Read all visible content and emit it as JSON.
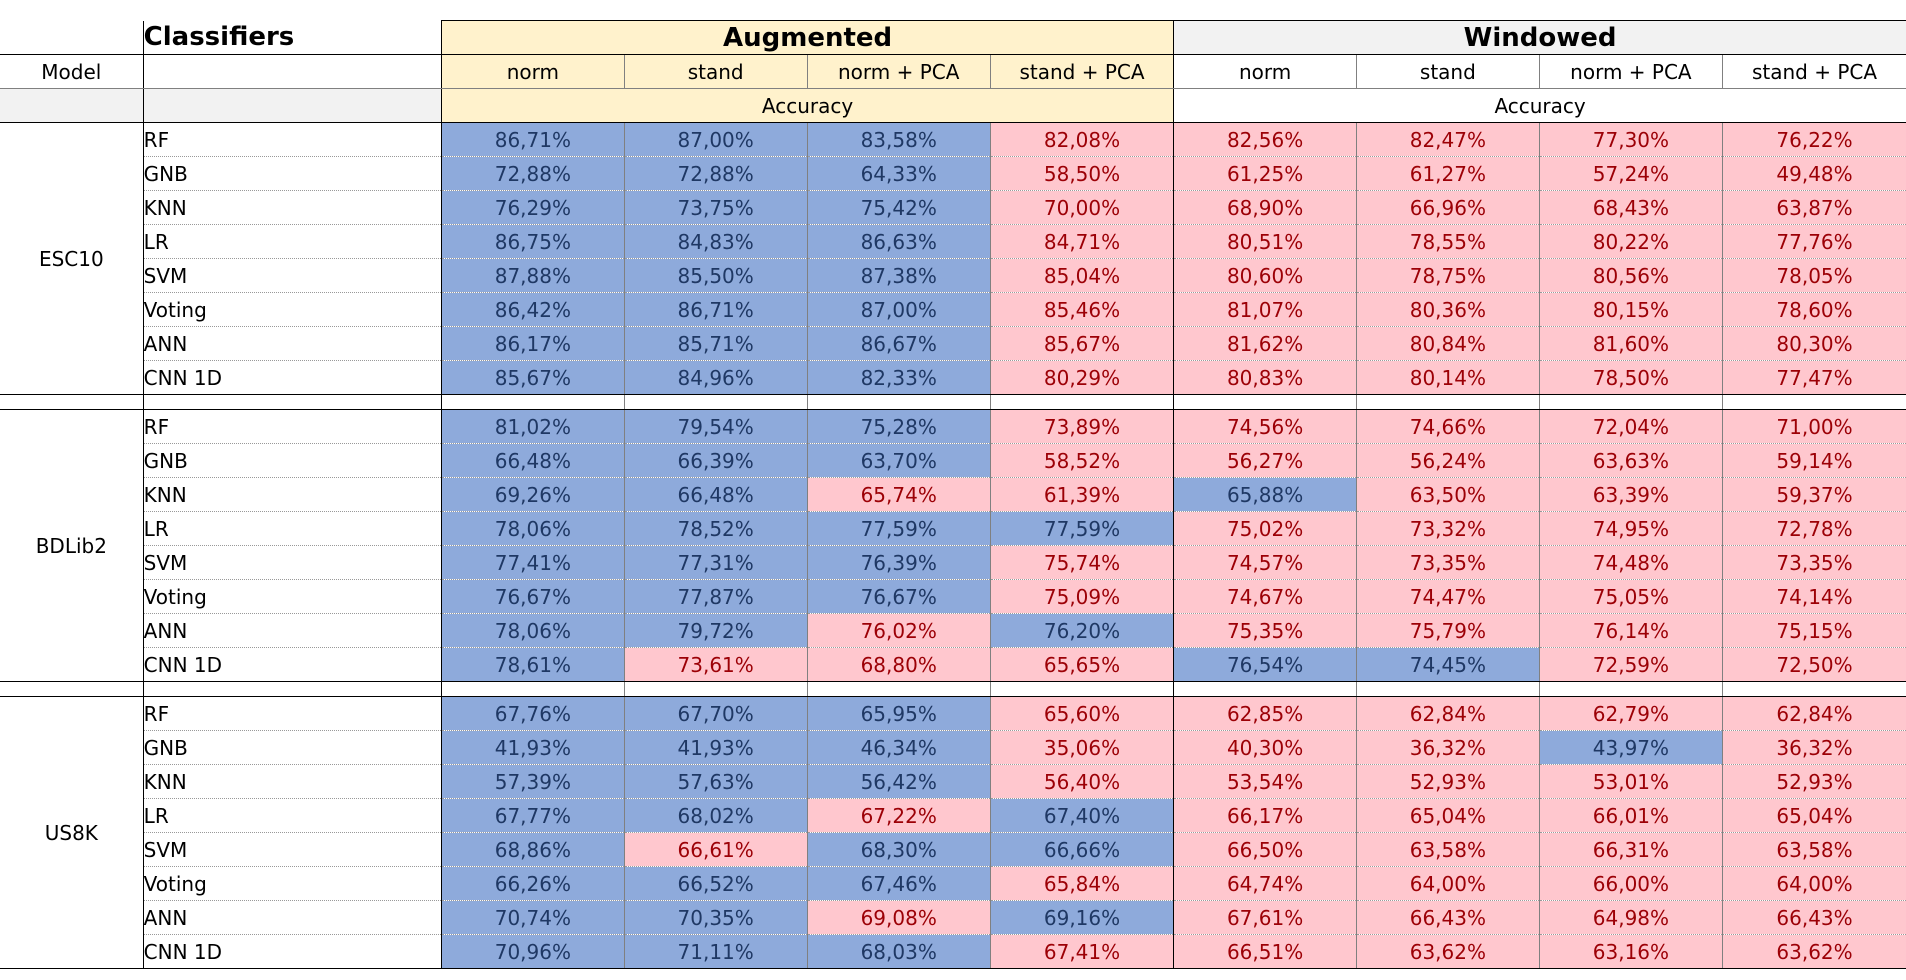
{
  "header": {
    "classifiers_title": "Classifiers",
    "model_label": "Model",
    "groups": [
      "Augmented",
      "Windowed"
    ],
    "columns": [
      "norm",
      "stand",
      "norm + PCA",
      "stand + PCA"
    ],
    "metric_label": "Accuracy"
  },
  "colors": {
    "blue": "#8eaadb",
    "pink": "#ffc7ce",
    "augmented_header": "#fff2cc",
    "windowed_header": "#f2f2f2"
  },
  "sections": [
    {
      "model": "ESC10",
      "rows": [
        {
          "classifier": "RF",
          "values": [
            "86,71%",
            "87,00%",
            "83,58%",
            "82,08%",
            "82,56%",
            "82,47%",
            "77,30%",
            "76,22%"
          ],
          "colors": [
            "b",
            "b",
            "b",
            "p",
            "p",
            "p",
            "p",
            "p"
          ]
        },
        {
          "classifier": "GNB",
          "values": [
            "72,88%",
            "72,88%",
            "64,33%",
            "58,50%",
            "61,25%",
            "61,27%",
            "57,24%",
            "49,48%"
          ],
          "colors": [
            "b",
            "b",
            "b",
            "p",
            "p",
            "p",
            "p",
            "p"
          ]
        },
        {
          "classifier": "KNN",
          "values": [
            "76,29%",
            "73,75%",
            "75,42%",
            "70,00%",
            "68,90%",
            "66,96%",
            "68,43%",
            "63,87%"
          ],
          "colors": [
            "b",
            "b",
            "b",
            "p",
            "p",
            "p",
            "p",
            "p"
          ]
        },
        {
          "classifier": "LR",
          "values": [
            "86,75%",
            "84,83%",
            "86,63%",
            "84,71%",
            "80,51%",
            "78,55%",
            "80,22%",
            "77,76%"
          ],
          "colors": [
            "b",
            "b",
            "b",
            "p",
            "p",
            "p",
            "p",
            "p"
          ]
        },
        {
          "classifier": "SVM",
          "values": [
            "87,88%",
            "85,50%",
            "87,38%",
            "85,04%",
            "80,60%",
            "78,75%",
            "80,56%",
            "78,05%"
          ],
          "colors": [
            "b",
            "b",
            "b",
            "p",
            "p",
            "p",
            "p",
            "p"
          ]
        },
        {
          "classifier": "Voting",
          "values": [
            "86,42%",
            "86,71%",
            "87,00%",
            "85,46%",
            "81,07%",
            "80,36%",
            "80,15%",
            "78,60%"
          ],
          "colors": [
            "b",
            "b",
            "b",
            "p",
            "p",
            "p",
            "p",
            "p"
          ]
        },
        {
          "classifier": "ANN",
          "values": [
            "86,17%",
            "85,71%",
            "86,67%",
            "85,67%",
            "81,62%",
            "80,84%",
            "81,60%",
            "80,30%"
          ],
          "colors": [
            "b",
            "b",
            "b",
            "p",
            "p",
            "p",
            "p",
            "p"
          ]
        },
        {
          "classifier": "CNN 1D",
          "values": [
            "85,67%",
            "84,96%",
            "82,33%",
            "80,29%",
            "80,83%",
            "80,14%",
            "78,50%",
            "77,47%"
          ],
          "colors": [
            "b",
            "b",
            "b",
            "p",
            "p",
            "p",
            "p",
            "p"
          ]
        }
      ]
    },
    {
      "model": "BDLib2",
      "rows": [
        {
          "classifier": "RF",
          "values": [
            "81,02%",
            "79,54%",
            "75,28%",
            "73,89%",
            "74,56%",
            "74,66%",
            "72,04%",
            "71,00%"
          ],
          "colors": [
            "b",
            "b",
            "b",
            "p",
            "p",
            "p",
            "p",
            "p"
          ]
        },
        {
          "classifier": "GNB",
          "values": [
            "66,48%",
            "66,39%",
            "63,70%",
            "58,52%",
            "56,27%",
            "56,24%",
            "63,63%",
            "59,14%"
          ],
          "colors": [
            "b",
            "b",
            "b",
            "p",
            "p",
            "p",
            "p",
            "p"
          ]
        },
        {
          "classifier": "KNN",
          "values": [
            "69,26%",
            "66,48%",
            "65,74%",
            "61,39%",
            "65,88%",
            "63,50%",
            "63,39%",
            "59,37%"
          ],
          "colors": [
            "b",
            "b",
            "p",
            "p",
            "b",
            "p",
            "p",
            "p"
          ]
        },
        {
          "classifier": "LR",
          "values": [
            "78,06%",
            "78,52%",
            "77,59%",
            "77,59%",
            "75,02%",
            "73,32%",
            "74,95%",
            "72,78%"
          ],
          "colors": [
            "b",
            "b",
            "b",
            "b",
            "p",
            "p",
            "p",
            "p"
          ]
        },
        {
          "classifier": "SVM",
          "values": [
            "77,41%",
            "77,31%",
            "76,39%",
            "75,74%",
            "74,57%",
            "73,35%",
            "74,48%",
            "73,35%"
          ],
          "colors": [
            "b",
            "b",
            "b",
            "p",
            "p",
            "p",
            "p",
            "p"
          ]
        },
        {
          "classifier": "Voting",
          "values": [
            "76,67%",
            "77,87%",
            "76,67%",
            "75,09%",
            "74,67%",
            "74,47%",
            "75,05%",
            "74,14%"
          ],
          "colors": [
            "b",
            "b",
            "b",
            "p",
            "p",
            "p",
            "p",
            "p"
          ]
        },
        {
          "classifier": "ANN",
          "values": [
            "78,06%",
            "79,72%",
            "76,02%",
            "76,20%",
            "75,35%",
            "75,79%",
            "76,14%",
            "75,15%"
          ],
          "colors": [
            "b",
            "b",
            "p",
            "b",
            "p",
            "p",
            "p",
            "p"
          ]
        },
        {
          "classifier": "CNN 1D",
          "values": [
            "78,61%",
            "73,61%",
            "68,80%",
            "65,65%",
            "76,54%",
            "74,45%",
            "72,59%",
            "72,50%"
          ],
          "colors": [
            "b",
            "p",
            "p",
            "p",
            "b",
            "b",
            "p",
            "p"
          ]
        }
      ]
    },
    {
      "model": "US8K",
      "rows": [
        {
          "classifier": "RF",
          "values": [
            "67,76%",
            "67,70%",
            "65,95%",
            "65,60%",
            "62,85%",
            "62,84%",
            "62,79%",
            "62,84%"
          ],
          "colors": [
            "b",
            "b",
            "b",
            "p",
            "p",
            "p",
            "p",
            "p"
          ]
        },
        {
          "classifier": "GNB",
          "values": [
            "41,93%",
            "41,93%",
            "46,34%",
            "35,06%",
            "40,30%",
            "36,32%",
            "43,97%",
            "36,32%"
          ],
          "colors": [
            "b",
            "b",
            "b",
            "p",
            "p",
            "p",
            "b",
            "p"
          ]
        },
        {
          "classifier": "KNN",
          "values": [
            "57,39%",
            "57,63%",
            "56,42%",
            "56,40%",
            "53,54%",
            "52,93%",
            "53,01%",
            "52,93%"
          ],
          "colors": [
            "b",
            "b",
            "b",
            "p",
            "p",
            "p",
            "p",
            "p"
          ]
        },
        {
          "classifier": "LR",
          "values": [
            "67,77%",
            "68,02%",
            "67,22%",
            "67,40%",
            "66,17%",
            "65,04%",
            "66,01%",
            "65,04%"
          ],
          "colors": [
            "b",
            "b",
            "p",
            "b",
            "p",
            "p",
            "p",
            "p"
          ]
        },
        {
          "classifier": "SVM",
          "values": [
            "68,86%",
            "66,61%",
            "68,30%",
            "66,66%",
            "66,50%",
            "63,58%",
            "66,31%",
            "63,58%"
          ],
          "colors": [
            "b",
            "p",
            "b",
            "b",
            "p",
            "p",
            "p",
            "p"
          ]
        },
        {
          "classifier": "Voting",
          "values": [
            "66,26%",
            "66,52%",
            "67,46%",
            "65,84%",
            "64,74%",
            "64,00%",
            "66,00%",
            "64,00%"
          ],
          "colors": [
            "b",
            "b",
            "b",
            "p",
            "p",
            "p",
            "p",
            "p"
          ]
        },
        {
          "classifier": "ANN",
          "values": [
            "70,74%",
            "70,35%",
            "69,08%",
            "69,16%",
            "67,61%",
            "66,43%",
            "64,98%",
            "66,43%"
          ],
          "colors": [
            "b",
            "b",
            "p",
            "b",
            "p",
            "p",
            "p",
            "p"
          ]
        },
        {
          "classifier": "CNN 1D",
          "values": [
            "70,96%",
            "71,11%",
            "68,03%",
            "67,41%",
            "66,51%",
            "63,62%",
            "63,16%",
            "63,62%"
          ],
          "colors": [
            "b",
            "b",
            "b",
            "p",
            "p",
            "p",
            "p",
            "p"
          ]
        }
      ]
    }
  ]
}
